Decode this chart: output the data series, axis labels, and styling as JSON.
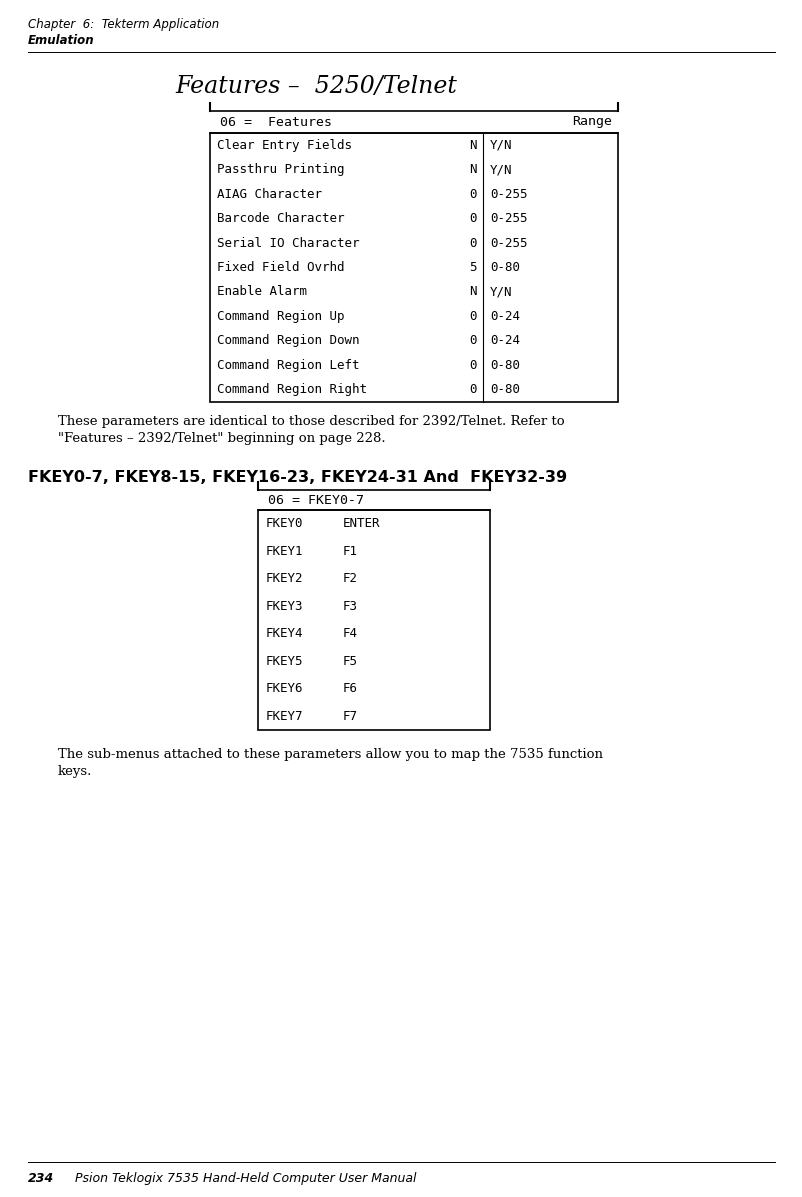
{
  "bg_color": "#ffffff",
  "text_color": "#000000",
  "page_header_line1": "Chapter  6:  Tekterm Application",
  "page_header_line2": "Emulation",
  "section_title": "Features –  5250/Telnet",
  "table1_header_left": "06 =  Features",
  "table1_header_right": "Range",
  "table1_rows": [
    [
      "Clear Entry Fields ",
      "N",
      "Y/N"
    ],
    [
      "Passthru Printing  ",
      "N",
      "Y/N"
    ],
    [
      "AIAG Character     ",
      "0",
      "0-255"
    ],
    [
      "Barcode Character  ",
      "0",
      "0-255"
    ],
    [
      "Serial IO Character",
      "0",
      "0-255"
    ],
    [
      "Fixed Field Ovrhd  ",
      "5",
      "0-80"
    ],
    [
      "Enable Alarm       ",
      "N",
      "Y/N"
    ],
    [
      "Command Region Up  ",
      "0",
      "0-24"
    ],
    [
      "Command Region Down",
      "0",
      "0-24"
    ],
    [
      "Command Region Left",
      "0",
      "0-80"
    ],
    [
      "Command Region Right",
      "0",
      "0-80"
    ]
  ],
  "para1_line1": "These parameters are identical to those described for 2392/Telnet. Refer to",
  "para1_line2": "\"Features – 2392/Telnet\" beginning on page 228.",
  "section2_title": "FKEY0-7, FKEY8-15, FKEY16-23, FKEY24-31 And  FKEY32-39",
  "table2_header": "06 = FKEY0-7",
  "table2_rows": [
    [
      "FKEY0",
      "ENTER"
    ],
    [
      "FKEY1",
      "F1"
    ],
    [
      "FKEY2",
      "F2"
    ],
    [
      "FKEY3",
      "F3"
    ],
    [
      "FKEY4",
      "F4"
    ],
    [
      "FKEY5",
      "F5"
    ],
    [
      "FKEY6",
      "F6"
    ],
    [
      "FKEY7",
      "F7"
    ]
  ],
  "para2_line1": "The sub-menus attached to these parameters allow you to map the 7535 function",
  "para2_line2": "keys.",
  "footer_number": "234",
  "footer_text": "Psion Teklogix 7535 Hand-Held Computer User Manual",
  "mono_font": "DejaVu Sans Mono",
  "serif_font": "DejaVu Serif",
  "sans_font": "DejaVu Sans"
}
